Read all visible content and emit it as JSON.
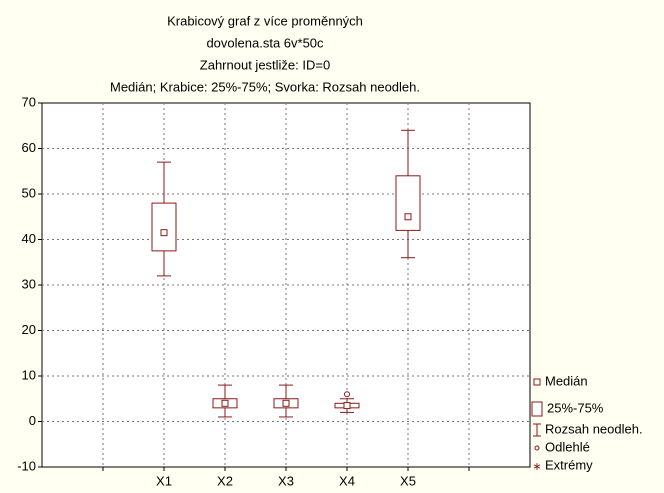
{
  "chart_data": {
    "type": "box",
    "title": "Krabicový graf z více proměnných",
    "subtitles": [
      "dovolena.sta 6v*50c",
      "Zahrnout jestliže: ID=0",
      "Medián; Krabice: 25%-75%; Svorka: Rozsah neodleh."
    ],
    "categories": [
      null,
      "X1",
      "X2",
      "X3",
      "X4",
      "X5",
      null
    ],
    "median": [
      null,
      41.5,
      4,
      4,
      3.5,
      45,
      null
    ],
    "q1": [
      null,
      37.5,
      3,
      3,
      3,
      42,
      null
    ],
    "q3": [
      null,
      48,
      5,
      5,
      4,
      54,
      null
    ],
    "whisker_low": [
      null,
      32,
      1,
      1,
      2,
      36,
      null
    ],
    "whisker_high": [
      null,
      57,
      8,
      8,
      5,
      64,
      null
    ],
    "outliers": [
      [],
      [],
      [],
      [],
      [
        6
      ],
      [],
      []
    ],
    "color": "#8b1a1a",
    "ylim": [
      -10,
      70
    ],
    "yticks": [
      -10,
      0,
      10,
      20,
      30,
      40,
      50,
      60,
      70
    ],
    "grid": true,
    "legend": [
      "Medián",
      "25%-75%",
      "Rozsah neodleh.",
      "Odlehlé",
      "Extrémy"
    ]
  }
}
